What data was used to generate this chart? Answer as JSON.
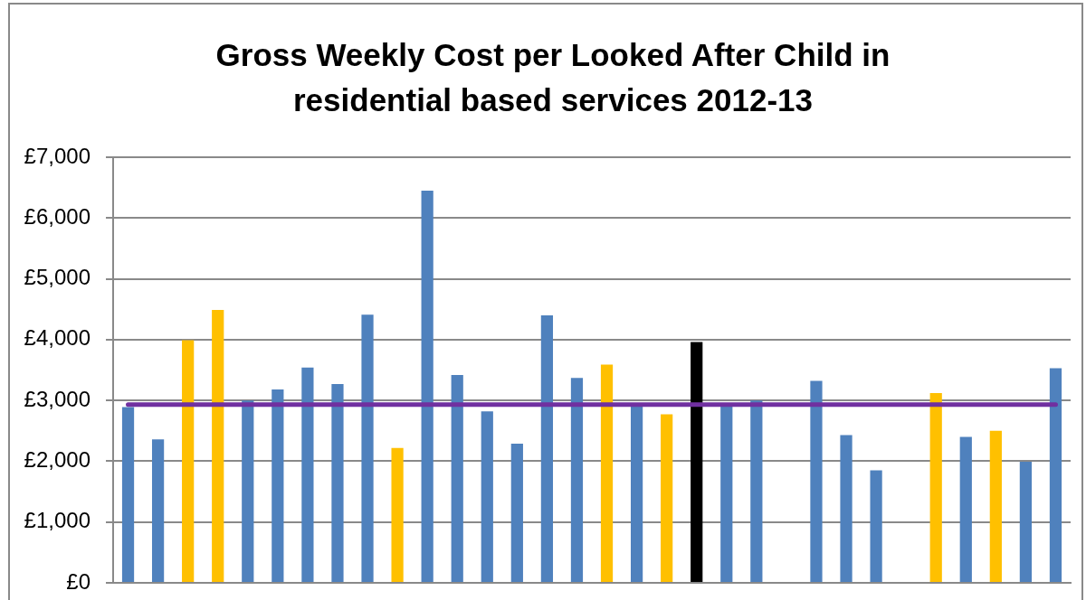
{
  "chart_data": {
    "type": "bar",
    "title": "Gross Weekly Cost per Looked After Child in residential based services 2012-13",
    "categories": [
      null,
      null,
      null,
      null,
      null,
      null,
      null,
      null,
      null,
      null,
      null,
      null,
      null,
      null,
      null,
      null,
      null,
      null,
      null,
      null,
      null,
      null,
      null,
      null,
      null,
      null,
      null,
      null,
      null,
      null,
      null,
      null
    ],
    "values": [
      2890,
      2360,
      3990,
      4490,
      3000,
      3180,
      3540,
      3270,
      4410,
      2220,
      6450,
      3420,
      2820,
      2290,
      4400,
      3370,
      3590,
      2900,
      2770,
      3960,
      2900,
      3000,
      null,
      3320,
      2430,
      1850,
      null,
      3120,
      2400,
      2500,
      1990,
      3530
    ],
    "colors": [
      "#4f81bd",
      "#4f81bd",
      "#ffc000",
      "#ffc000",
      "#4f81bd",
      "#4f81bd",
      "#4f81bd",
      "#4f81bd",
      "#4f81bd",
      "#ffc000",
      "#4f81bd",
      "#4f81bd",
      "#4f81bd",
      "#4f81bd",
      "#4f81bd",
      "#4f81bd",
      "#ffc000",
      "#4f81bd",
      "#ffc000",
      "#000000",
      "#4f81bd",
      "#4f81bd",
      "#4f81bd",
      "#4f81bd",
      "#4f81bd",
      "#4f81bd",
      "#4f81bd",
      "#ffc000",
      "#4f81bd",
      "#ffc000",
      "#4f81bd",
      "#4f81bd"
    ],
    "ylim": [
      0,
      7000
    ],
    "yticks": [
      {
        "value": 0,
        "label": "£0"
      },
      {
        "value": 1000,
        "label": "£1,000"
      },
      {
        "value": 2000,
        "label": "£2,000"
      },
      {
        "value": 3000,
        "label": "£3,000"
      },
      {
        "value": 4000,
        "label": "£4,000"
      },
      {
        "value": 5000,
        "label": "£5,000"
      },
      {
        "value": 6000,
        "label": "£6,000"
      },
      {
        "value": 7000,
        "label": "£7,000"
      }
    ],
    "grid": "y",
    "tick_labels": "y",
    "ref_lines": [
      {
        "axis": "y",
        "value": 2930,
        "color": "#7030a0"
      }
    ]
  }
}
